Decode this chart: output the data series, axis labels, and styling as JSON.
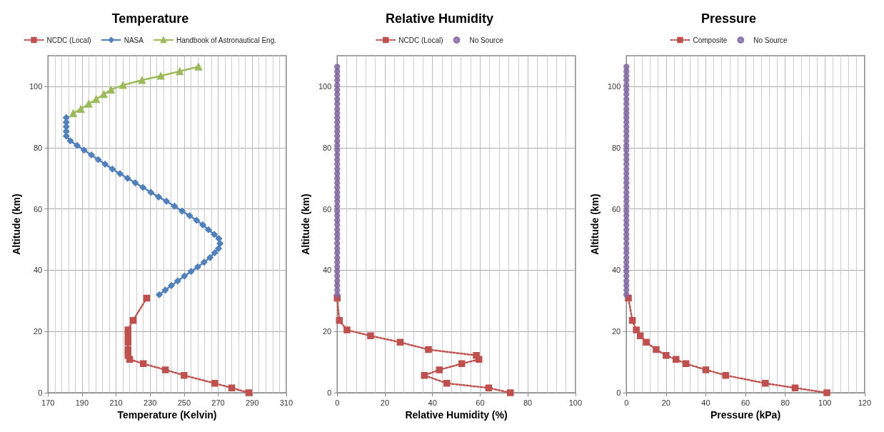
{
  "chart_data": [
    {
      "type": "line",
      "title": "Temperature",
      "xlabel": "Temperature (Kelvin)",
      "ylabel": "Altitude (km)",
      "xlim": [
        170,
        310
      ],
      "xticks": [
        170,
        190,
        210,
        230,
        250,
        270,
        290,
        310
      ],
      "ylim": [
        0,
        110
      ],
      "yticks": [
        0,
        20,
        40,
        60,
        80,
        100
      ],
      "grid": true,
      "legend": "top",
      "series": [
        {
          "name": "NCDC (Local)",
          "color": "#c0504d",
          "marker": "square",
          "line_style": "dotted",
          "x": [
            288,
            278,
            268,
            250,
            239,
            226,
            218,
            217,
            217,
            217,
            217,
            217,
            220,
            228
          ],
          "values": [
            0,
            1.6,
            3.1,
            5.7,
            7.5,
            9.5,
            10.9,
            12.2,
            14.1,
            16.5,
            18.6,
            20.5,
            23.6,
            30.9
          ]
        },
        {
          "name": "NASA",
          "color": "#4f81bd",
          "marker": "diamond",
          "line_style": "solid",
          "x": [
            235.4,
            238.9,
            242.5,
            246.2,
            250.2,
            254.1,
            258.0,
            261.7,
            265.2,
            268.0,
            270.2,
            271.1,
            270.4,
            267.7,
            264.3,
            261.0,
            257.3,
            253.2,
            248.8,
            244.3,
            239.6,
            235.0,
            230.5,
            225.8,
            221.3,
            216.8,
            212.3,
            207.8,
            203.6,
            199.5,
            195.5,
            191.2,
            187.1,
            183.1,
            180.7,
            180.7,
            180.7,
            180.7,
            180.7
          ],
          "values": [
            32.0,
            33.5,
            35.0,
            36.5,
            38.1,
            39.6,
            41.1,
            42.6,
            44.1,
            45.7,
            47.1,
            48.7,
            50.3,
            51.7,
            53.2,
            54.8,
            56.3,
            57.8,
            59.3,
            60.9,
            62.5,
            63.9,
            65.4,
            67.0,
            68.5,
            70.0,
            71.5,
            73.0,
            74.6,
            76.1,
            77.6,
            79.2,
            80.7,
            82.2,
            83.8,
            85.3,
            86.8,
            88.3,
            89.8
          ]
        },
        {
          "name": "Handbook of Astronautical Eng.",
          "color": "#9bbb59",
          "marker": "triangle",
          "line_style": "solid",
          "x": [
            184.8,
            189.3,
            193.9,
            198.3,
            202.8,
            207.0,
            214.1,
            225.2,
            236.3,
            247.4,
            258.4
          ],
          "values": [
            91.2,
            92.6,
            94.3,
            95.8,
            97.4,
            98.9,
            100.4,
            102.0,
            103.4,
            104.9,
            106.4
          ]
        }
      ]
    },
    {
      "type": "line",
      "title": "Relative Humidity",
      "xlabel": "Relative Humidity (%)",
      "ylabel": "Altitude (km)",
      "xlim": [
        0,
        100
      ],
      "xticks": [
        0,
        20,
        40,
        60,
        80,
        100
      ],
      "ylim": [
        0,
        110
      ],
      "yticks": [
        0,
        20,
        40,
        60,
        80,
        100
      ],
      "grid": true,
      "legend": "top",
      "series": [
        {
          "name": "NCDC (Local)",
          "color": "#c0504d",
          "marker": "square",
          "line_style": "dotted",
          "x": [
            72.7,
            63.6,
            46.0,
            36.6,
            42.9,
            52.3,
            59.5,
            58.4,
            38.3,
            26.4,
            14.0,
            4.1,
            0.9,
            0
          ],
          "values": [
            0,
            1.6,
            3.1,
            5.7,
            7.5,
            9.5,
            10.9,
            12.2,
            14.1,
            16.5,
            18.6,
            20.5,
            23.6,
            30.9
          ]
        },
        {
          "name": "No Source",
          "type": "scatter",
          "color": "#8064a2",
          "marker": "circle",
          "x": [
            0,
            0,
            0,
            0,
            0,
            0,
            0,
            0,
            0,
            0,
            0,
            0,
            0,
            0,
            0,
            0,
            0,
            0,
            0,
            0,
            0,
            0,
            0,
            0,
            0,
            0,
            0,
            0,
            0,
            0,
            0,
            0,
            0,
            0,
            0,
            0,
            0,
            0,
            0,
            0,
            0,
            0,
            0,
            0,
            0,
            0,
            0,
            0,
            0,
            0
          ],
          "values": [
            32.0,
            33.5,
            35.0,
            36.5,
            38.1,
            39.6,
            41.1,
            42.6,
            44.1,
            45.7,
            47.1,
            48.7,
            50.3,
            51.7,
            53.2,
            54.8,
            56.3,
            57.8,
            59.3,
            60.9,
            62.5,
            63.9,
            65.4,
            67.0,
            68.5,
            70.0,
            71.5,
            73.0,
            74.6,
            76.1,
            77.6,
            79.2,
            80.7,
            82.2,
            83.8,
            85.3,
            86.8,
            88.3,
            89.8,
            91.2,
            92.6,
            94.3,
            95.8,
            97.4,
            98.9,
            100.4,
            102.0,
            103.4,
            104.9,
            106.4
          ]
        }
      ]
    },
    {
      "type": "line",
      "title": "Pressure",
      "xlabel": "Pressure (kPa)",
      "ylabel": "Altitude (km)",
      "xlim": [
        0,
        120
      ],
      "xticks": [
        0,
        20,
        40,
        60,
        80,
        100,
        120
      ],
      "ylim": [
        0,
        110
      ],
      "yticks": [
        0,
        20,
        40,
        60,
        80,
        100
      ],
      "grid": true,
      "legend": "top",
      "series": [
        {
          "name": "Composite",
          "color": "#c0504d",
          "marker": "square",
          "line_style": "dotted",
          "x": [
            101,
            85,
            70,
            50,
            40,
            30,
            25,
            20,
            15,
            10,
            7,
            5,
            3,
            1
          ],
          "values": [
            0,
            1.6,
            3.1,
            5.7,
            7.5,
            9.5,
            10.9,
            12.2,
            14.1,
            16.5,
            18.6,
            20.5,
            23.6,
            30.9
          ]
        },
        {
          "name": "No Source",
          "type": "scatter",
          "color": "#8064a2",
          "marker": "circle",
          "x": [
            0,
            0,
            0,
            0,
            0,
            0,
            0,
            0,
            0,
            0,
            0,
            0,
            0,
            0,
            0,
            0,
            0,
            0,
            0,
            0,
            0,
            0,
            0,
            0,
            0,
            0,
            0,
            0,
            0,
            0,
            0,
            0,
            0,
            0,
            0,
            0,
            0,
            0,
            0,
            0,
            0,
            0,
            0,
            0,
            0,
            0,
            0,
            0,
            0,
            0
          ],
          "values": [
            32.0,
            33.5,
            35.0,
            36.5,
            38.1,
            39.6,
            41.1,
            42.6,
            44.1,
            45.7,
            47.1,
            48.7,
            50.3,
            51.7,
            53.2,
            54.8,
            56.3,
            57.8,
            59.3,
            60.9,
            62.5,
            63.9,
            65.4,
            67.0,
            68.5,
            70.0,
            71.5,
            73.0,
            74.6,
            76.1,
            77.6,
            79.2,
            80.7,
            82.2,
            83.8,
            85.3,
            86.8,
            88.3,
            89.8,
            91.2,
            92.6,
            94.3,
            95.8,
            97.4,
            98.9,
            100.4,
            102.0,
            103.4,
            104.9,
            106.4
          ]
        }
      ]
    }
  ]
}
